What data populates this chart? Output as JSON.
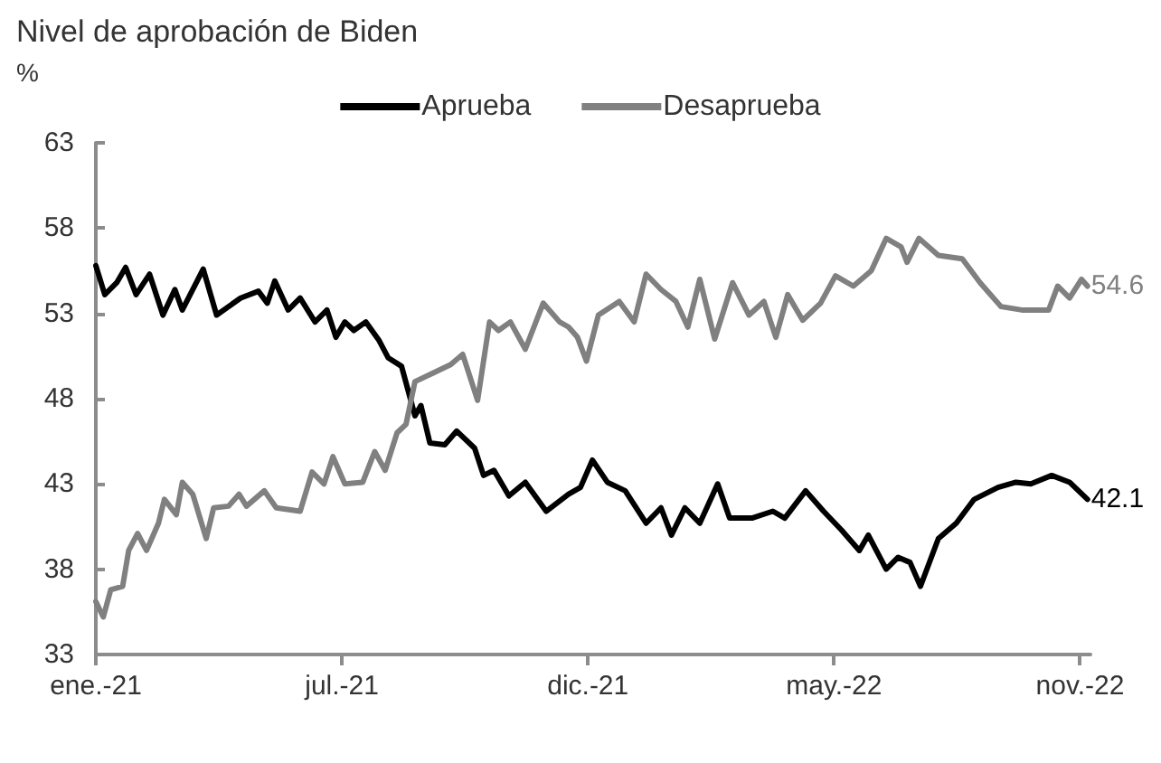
{
  "chart_data": {
    "type": "line",
    "title": "Nivel de aprobación de Biden",
    "ylabel": "%",
    "legend": "top",
    "grid": false,
    "line_style": "solid",
    "marker": "none",
    "xlim": [
      "2021-01-20",
      "2022-11-18"
    ],
    "xticks": [
      {
        "value": "2021-01-20",
        "label": "ene.-21"
      },
      {
        "value": "2021-07-04",
        "label": "jul.-21"
      },
      {
        "value": "2021-12-16",
        "label": "dic.-21"
      },
      {
        "value": "2022-05-30",
        "label": "may.-22"
      },
      {
        "value": "2022-11-11",
        "label": "nov.-22"
      }
    ],
    "ylim": [
      33,
      63
    ],
    "yticks": [
      33,
      38,
      43,
      48,
      53,
      58,
      63
    ],
    "series": [
      {
        "name": "Aprueba",
        "color": "#000000",
        "x": [
          "2021-01-20",
          "2021-01-26",
          "2021-02-03",
          "2021-02-09",
          "2021-02-16",
          "2021-02-25",
          "2021-03-06",
          "2021-03-14",
          "2021-03-19",
          "2021-04-02",
          "2021-04-11",
          "2021-04-27",
          "2021-05-09",
          "2021-05-15",
          "2021-05-20",
          "2021-05-29",
          "2021-06-06",
          "2021-06-16",
          "2021-06-24",
          "2021-06-30",
          "2021-07-06",
          "2021-07-12",
          "2021-07-20",
          "2021-07-29",
          "2021-08-04",
          "2021-08-13",
          "2021-08-22",
          "2021-08-26",
          "2021-09-01",
          "2021-09-11",
          "2021-09-19",
          "2021-10-01",
          "2021-10-07",
          "2021-10-14",
          "2021-10-24",
          "2021-11-04",
          "2021-11-18",
          "2021-12-03",
          "2021-12-11",
          "2021-12-19",
          "2021-12-29",
          "2022-01-10",
          "2022-01-24",
          "2022-02-03",
          "2022-02-10",
          "2022-02-19",
          "2022-03-01",
          "2022-03-13",
          "2022-03-21",
          "2022-04-05",
          "2022-04-19",
          "2022-04-27",
          "2022-05-11",
          "2022-05-23",
          "2022-06-04",
          "2022-06-16",
          "2022-06-22",
          "2022-07-04",
          "2022-07-12",
          "2022-07-20",
          "2022-07-27",
          "2022-08-08",
          "2022-08-20",
          "2022-09-01",
          "2022-09-17",
          "2022-09-29",
          "2022-10-09",
          "2022-10-23",
          "2022-11-04",
          "2022-11-16"
        ],
        "values": [
          55.8,
          54.1,
          54.8,
          55.7,
          54.1,
          55.3,
          52.9,
          54.4,
          53.2,
          55.6,
          52.9,
          53.9,
          54.3,
          53.6,
          54.9,
          53.2,
          53.9,
          52.5,
          53.2,
          51.6,
          52.5,
          52.0,
          52.5,
          51.4,
          50.4,
          49.9,
          47.0,
          47.6,
          45.4,
          45.3,
          46.1,
          45.1,
          43.5,
          43.8,
          42.3,
          43.1,
          41.4,
          42.4,
          42.8,
          44.4,
          43.1,
          42.6,
          40.7,
          41.6,
          40.0,
          41.6,
          40.7,
          43.0,
          41.0,
          41.0,
          41.4,
          41.0,
          42.6,
          41.4,
          40.3,
          39.1,
          40.0,
          38.0,
          38.7,
          38.4,
          37.0,
          39.8,
          40.7,
          42.1,
          42.8,
          43.1,
          43.0,
          43.5,
          43.1,
          42.1
        ],
        "value_labels": [
          null,
          null,
          null,
          null,
          null,
          null,
          null,
          null,
          null,
          null,
          null,
          null,
          null,
          null,
          null,
          null,
          null,
          null,
          null,
          null,
          null,
          null,
          null,
          null,
          null,
          null,
          null,
          null,
          null,
          null,
          null,
          null,
          null,
          null,
          null,
          null,
          null,
          null,
          null,
          null,
          null,
          null,
          null,
          null,
          null,
          null,
          null,
          null,
          null,
          null,
          null,
          null,
          null,
          null,
          null,
          null,
          null,
          null,
          null,
          null,
          null,
          null,
          null,
          null,
          null,
          null,
          null,
          null,
          null,
          "42.1"
        ]
      },
      {
        "name": "Desaprueba",
        "color": "#808080",
        "x": [
          "2021-01-20",
          "2021-01-25",
          "2021-01-30",
          "2021-02-07",
          "2021-02-11",
          "2021-02-17",
          "2021-02-23",
          "2021-03-03",
          "2021-03-07",
          "2021-03-15",
          "2021-03-19",
          "2021-03-26",
          "2021-04-04",
          "2021-04-09",
          "2021-04-19",
          "2021-04-26",
          "2021-05-01",
          "2021-05-13",
          "2021-05-21",
          "2021-06-06",
          "2021-06-14",
          "2021-06-22",
          "2021-06-28",
          "2021-07-06",
          "2021-07-18",
          "2021-07-26",
          "2021-08-02",
          "2021-08-10",
          "2021-08-16",
          "2021-08-22",
          "2021-09-03",
          "2021-09-15",
          "2021-09-23",
          "2021-10-03",
          "2021-10-11",
          "2021-10-17",
          "2021-10-25",
          "2021-11-04",
          "2021-11-16",
          "2021-11-27",
          "2021-12-03",
          "2021-12-09",
          "2021-12-15",
          "2021-12-23",
          "2022-01-06",
          "2022-01-16",
          "2022-01-24",
          "2022-02-03",
          "2022-02-13",
          "2022-02-21",
          "2022-03-01",
          "2022-03-11",
          "2022-03-23",
          "2022-04-03",
          "2022-04-13",
          "2022-04-21",
          "2022-04-29",
          "2022-05-09",
          "2022-05-21",
          "2022-05-31",
          "2022-06-12",
          "2022-06-24",
          "2022-07-04",
          "2022-07-14",
          "2022-07-18",
          "2022-07-26",
          "2022-08-08",
          "2022-08-24",
          "2022-09-05",
          "2022-09-19",
          "2022-10-03",
          "2022-10-21",
          "2022-10-27",
          "2022-11-04",
          "2022-11-12",
          "2022-11-16"
        ],
        "values": [
          36.1,
          35.2,
          36.8,
          37.0,
          39.1,
          40.1,
          39.1,
          40.7,
          42.1,
          41.2,
          43.1,
          42.4,
          39.8,
          41.6,
          41.7,
          42.4,
          41.7,
          42.6,
          41.6,
          41.4,
          43.7,
          43.0,
          44.6,
          43.0,
          43.1,
          44.9,
          43.8,
          46.0,
          46.5,
          49.0,
          49.5,
          50.0,
          50.6,
          47.9,
          52.5,
          52.0,
          52.5,
          50.9,
          53.6,
          52.5,
          52.2,
          51.6,
          50.2,
          52.9,
          53.7,
          52.5,
          55.3,
          54.4,
          53.7,
          52.2,
          55.0,
          51.5,
          54.8,
          52.9,
          53.7,
          51.6,
          54.1,
          52.6,
          53.6,
          55.2,
          54.6,
          55.5,
          57.4,
          56.9,
          56.0,
          57.4,
          56.4,
          56.2,
          54.8,
          53.4,
          53.2,
          53.2,
          54.6,
          53.9,
          55.0,
          54.6
        ],
        "value_labels": [
          null,
          null,
          null,
          null,
          null,
          null,
          null,
          null,
          null,
          null,
          null,
          null,
          null,
          null,
          null,
          null,
          null,
          null,
          null,
          null,
          null,
          null,
          null,
          null,
          null,
          null,
          null,
          null,
          null,
          null,
          null,
          null,
          null,
          null,
          null,
          null,
          null,
          null,
          null,
          null,
          null,
          null,
          null,
          null,
          null,
          null,
          null,
          null,
          null,
          null,
          null,
          null,
          null,
          null,
          null,
          null,
          null,
          null,
          null,
          null,
          null,
          null,
          null,
          null,
          null,
          null,
          null,
          null,
          null,
          null,
          null,
          null,
          null,
          null,
          null,
          "54.6"
        ]
      }
    ]
  }
}
